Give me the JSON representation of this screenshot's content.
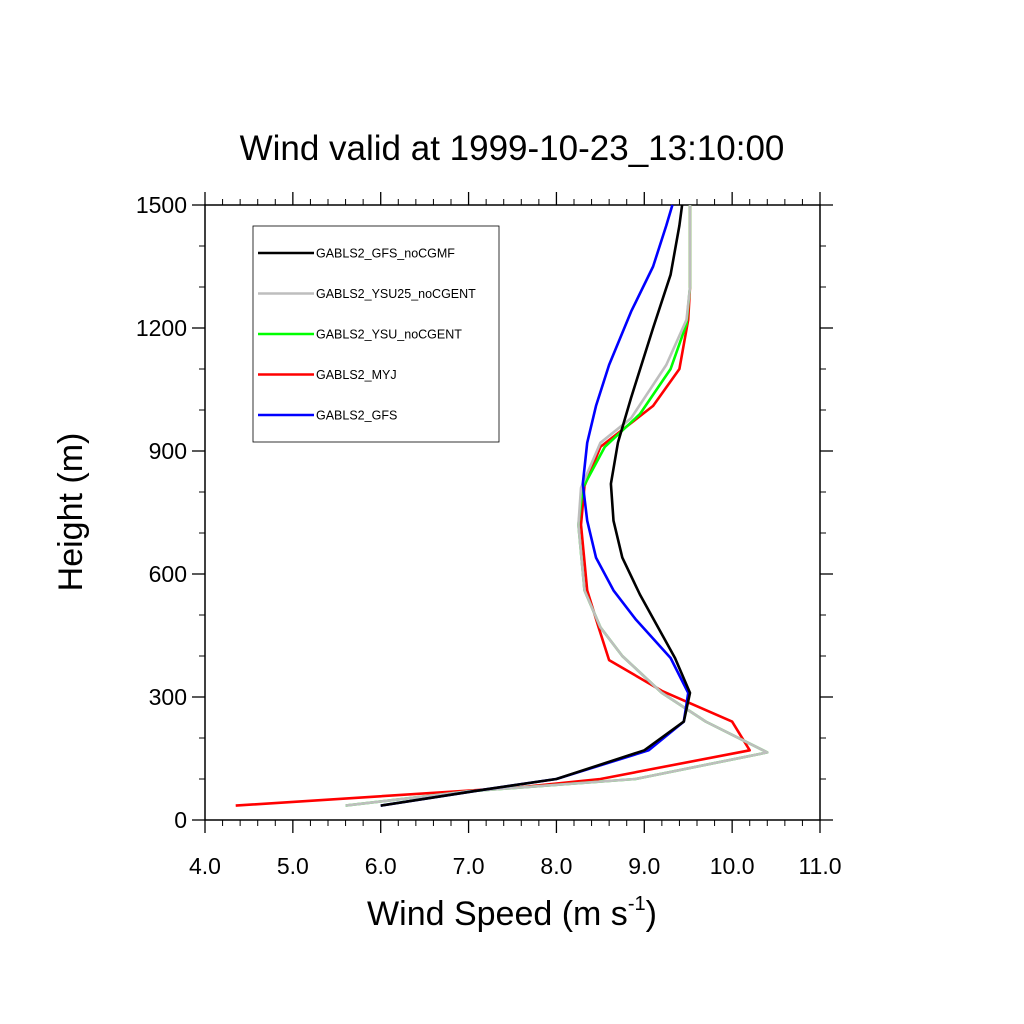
{
  "chart_data": {
    "type": "line",
    "title": "Wind valid at 1999-10-23_13:10:00",
    "xlabel": "Wind Speed (m s",
    "xlabel_sup": "-1",
    "xlabel_end": ")",
    "ylabel": "Height (m)",
    "xlim": [
      4.0,
      11.0
    ],
    "ylim": [
      0,
      1500
    ],
    "x_ticks": [
      "4.0",
      "5.0",
      "6.0",
      "7.0",
      "8.0",
      "9.0",
      "10.0",
      "11.0"
    ],
    "y_ticks": [
      "0",
      "300",
      "600",
      "900",
      "1200",
      "1500"
    ],
    "grid": false,
    "legend_position": "top-left",
    "series": [
      {
        "name": "GABLS2_GFS_noCGMF",
        "color": "#000000",
        "points": [
          [
            6.0,
            35
          ],
          [
            7.2,
            75
          ],
          [
            8.0,
            100
          ],
          [
            9.0,
            170
          ],
          [
            9.45,
            240
          ],
          [
            9.52,
            310
          ],
          [
            9.35,
            395
          ],
          [
            8.95,
            550
          ],
          [
            8.75,
            640
          ],
          [
            8.65,
            730
          ],
          [
            8.62,
            820
          ],
          [
            8.7,
            920
          ],
          [
            8.85,
            1030
          ],
          [
            9.1,
            1200
          ],
          [
            9.3,
            1330
          ],
          [
            9.4,
            1450
          ],
          [
            9.43,
            1500
          ]
        ]
      },
      {
        "name": "GABLS2_YSU25_noCGENT",
        "color": "#bebebe",
        "points": [
          [
            5.6,
            35
          ],
          [
            7.0,
            70
          ],
          [
            8.9,
            100
          ],
          [
            10.4,
            165
          ],
          [
            9.7,
            240
          ],
          [
            9.2,
            310
          ],
          [
            8.75,
            400
          ],
          [
            8.5,
            470
          ],
          [
            8.32,
            560
          ],
          [
            8.25,
            720
          ],
          [
            8.28,
            810
          ],
          [
            8.5,
            920
          ],
          [
            8.85,
            980
          ],
          [
            9.25,
            1110
          ],
          [
            9.48,
            1220
          ],
          [
            9.52,
            1300
          ],
          [
            9.52,
            1500
          ]
        ]
      },
      {
        "name": "GABLS2_YSU_noCGENT",
        "color": "#00ff00",
        "points": [
          [
            5.6,
            35
          ],
          [
            7.0,
            70
          ],
          [
            8.9,
            100
          ],
          [
            10.4,
            165
          ],
          [
            9.7,
            240
          ],
          [
            9.2,
            310
          ],
          [
            8.75,
            400
          ],
          [
            8.5,
            470
          ],
          [
            8.32,
            560
          ],
          [
            8.25,
            720
          ],
          [
            8.3,
            810
          ],
          [
            8.55,
            910
          ],
          [
            8.95,
            990
          ],
          [
            9.3,
            1100
          ],
          [
            9.48,
            1210
          ],
          [
            9.52,
            1300
          ],
          [
            9.52,
            1500
          ]
        ]
      },
      {
        "name": "GABLS2_MYJ",
        "color": "#ff0000",
        "points": [
          [
            4.35,
            35
          ],
          [
            7.6,
            80
          ],
          [
            8.5,
            100
          ],
          [
            10.2,
            170
          ],
          [
            10.0,
            240
          ],
          [
            9.2,
            315
          ],
          [
            8.6,
            390
          ],
          [
            8.48,
            470
          ],
          [
            8.35,
            560
          ],
          [
            8.28,
            720
          ],
          [
            8.32,
            815
          ],
          [
            8.5,
            910
          ],
          [
            9.1,
            1010
          ],
          [
            9.4,
            1100
          ],
          [
            9.5,
            1220
          ],
          [
            9.52,
            1300
          ],
          [
            9.52,
            1500
          ]
        ]
      },
      {
        "name": "GABLS2_GFS",
        "color": "#0000ff",
        "points": [
          [
            6.0,
            35
          ],
          [
            7.2,
            75
          ],
          [
            8.0,
            100
          ],
          [
            9.05,
            170
          ],
          [
            9.45,
            240
          ],
          [
            9.5,
            310
          ],
          [
            9.3,
            395
          ],
          [
            8.9,
            490
          ],
          [
            8.65,
            560
          ],
          [
            8.45,
            640
          ],
          [
            8.35,
            730
          ],
          [
            8.3,
            820
          ],
          [
            8.35,
            920
          ],
          [
            8.45,
            1010
          ],
          [
            8.6,
            1110
          ],
          [
            8.85,
            1240
          ],
          [
            9.1,
            1350
          ],
          [
            9.25,
            1450
          ],
          [
            9.32,
            1500
          ]
        ]
      }
    ]
  }
}
